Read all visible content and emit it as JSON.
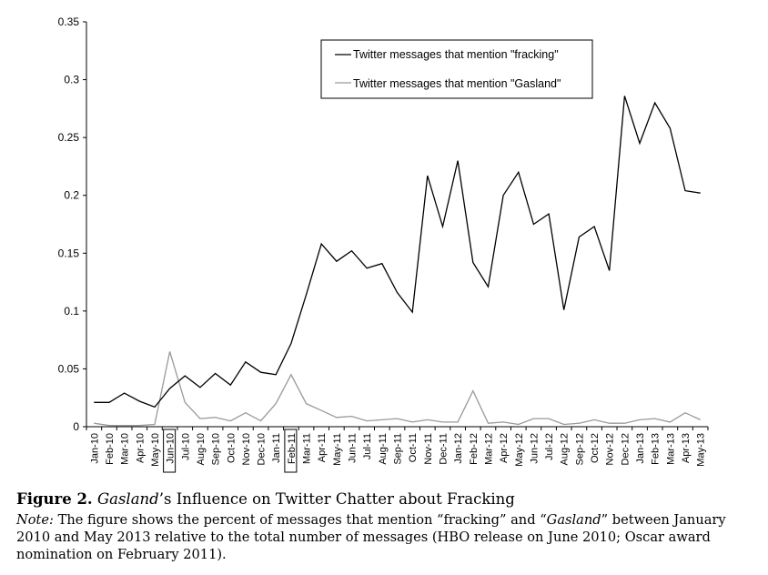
{
  "chart_data": {
    "type": "line",
    "title": "",
    "xlabel": "",
    "ylabel": "",
    "ylim": [
      0,
      0.35
    ],
    "yticks": [
      "0",
      "0.05",
      "0.1",
      "0.15",
      "0.2",
      "0.25",
      "0.3",
      "0.35"
    ],
    "grid": false,
    "legend_position": "top-right",
    "highlighted_categories": [
      "Jun-10",
      "Feb-11"
    ],
    "categories": [
      "Jan-10",
      "Feb-10",
      "Mar-10",
      "Apr-10",
      "May-10",
      "Jun-10",
      "Jul-10",
      "Aug-10",
      "Sep-10",
      "Oct-10",
      "Nov-10",
      "Dec-10",
      "Jan-11",
      "Feb-11",
      "Mar-11",
      "Apr-11",
      "May-11",
      "Jun-11",
      "Jul-11",
      "Aug-11",
      "Sep-11",
      "Oct-11",
      "Nov-11",
      "Dec-11",
      "Jan-12",
      "Feb-12",
      "Mar-12",
      "Apr-12",
      "May-12",
      "Jun-12",
      "Jul-12",
      "Aug-12",
      "Sep-12",
      "Oct-12",
      "Nov-12",
      "Dec-12",
      "Jan-13",
      "Feb-13",
      "Mar-13",
      "Apr-13",
      "May-13"
    ],
    "series": [
      {
        "name": "Twitter messages that mention \"fracking\"",
        "color": "#000000",
        "values": [
          0.021,
          0.021,
          0.029,
          0.022,
          0.017,
          0.033,
          0.044,
          0.034,
          0.046,
          0.036,
          0.056,
          0.047,
          0.045,
          0.072,
          0.114,
          0.158,
          0.143,
          0.152,
          0.137,
          0.141,
          0.116,
          0.099,
          0.217,
          0.173,
          0.23,
          0.142,
          0.121,
          0.2,
          0.22,
          0.175,
          0.184,
          0.101,
          0.164,
          0.173,
          0.135,
          0.286,
          0.245,
          0.28,
          0.258,
          0.204,
          0.202
        ]
      },
      {
        "name": "Twitter messages that mention \"Gasland\"",
        "color": "#999999",
        "values": [
          0.003,
          0.001,
          0.001,
          0.001,
          0.002,
          0.065,
          0.021,
          0.007,
          0.008,
          0.005,
          0.012,
          0.005,
          0.02,
          0.045,
          0.02,
          0.014,
          0.008,
          0.009,
          0.005,
          0.006,
          0.007,
          0.004,
          0.006,
          0.004,
          0.004,
          0.031,
          0.003,
          0.004,
          0.002,
          0.007,
          0.007,
          0.002,
          0.003,
          0.006,
          0.003,
          0.003,
          0.006,
          0.007,
          0.004,
          0.012,
          0.006
        ]
      }
    ]
  },
  "caption": {
    "figure_label": "Figure 2.",
    "title_italic": "Gasland",
    "title_rest": "’s Influence on Twitter Chatter about Fracking",
    "note_label": "Note:",
    "note_part1": " The figure shows the percent of messages that mention “fracking” and “",
    "note_italic": "Gasland",
    "note_part2": "” between January 2010 and May 2013 relative to the total number of messages (HBO release on June 2010; Oscar award nomination on February 2011)."
  }
}
